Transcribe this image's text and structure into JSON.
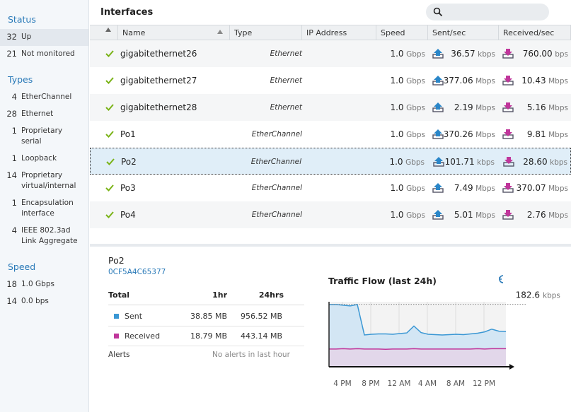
{
  "sidebar": {
    "sections": [
      {
        "title": "Status",
        "items": [
          {
            "count": "32",
            "label": "Up"
          },
          {
            "count": "21",
            "label": "Not monitored"
          }
        ]
      },
      {
        "title": "Types",
        "items": [
          {
            "count": "4",
            "label": "EtherChannel"
          },
          {
            "count": "28",
            "label": "Ethernet"
          },
          {
            "count": "1",
            "label": "Proprietary serial"
          },
          {
            "count": "1",
            "label": "Loopback"
          },
          {
            "count": "14",
            "label": "Proprietary virtual/internal"
          },
          {
            "count": "1",
            "label": "Encapsulation interface"
          },
          {
            "count": "4",
            "label": "IEEE 802.3ad Link Aggregate"
          }
        ]
      },
      {
        "title": "Speed",
        "items": [
          {
            "count": "18",
            "label": "1.0 Gbps"
          },
          {
            "count": "14",
            "label": "0.0 bps"
          }
        ]
      }
    ]
  },
  "header": {
    "title": "Interfaces"
  },
  "table": {
    "columns": [
      "Name",
      "Type",
      "IP Address",
      "Speed",
      "Sent/sec",
      "Received/sec"
    ],
    "selected": 4,
    "rows": [
      {
        "name": "gigabitethernet26",
        "type": "Ethernet",
        "speed": [
          "1.0",
          "Gbps"
        ],
        "sent": [
          "36.57",
          "kbps"
        ],
        "received": [
          "760.00",
          "bps"
        ]
      },
      {
        "name": "gigabitethernet27",
        "type": "Ethernet",
        "speed": [
          "1.0",
          "Gbps"
        ],
        "sent": [
          "377.06",
          "Mbps"
        ],
        "received": [
          "10.43",
          "Mbps"
        ]
      },
      {
        "name": "gigabitethernet28",
        "type": "Ethernet",
        "speed": [
          "1.0",
          "Gbps"
        ],
        "sent": [
          "2.19",
          "Mbps"
        ],
        "received": [
          "5.16",
          "Mbps"
        ]
      },
      {
        "name": "Po1",
        "type": "EtherChannel",
        "speed": [
          "1.0",
          "Gbps"
        ],
        "sent": [
          "370.26",
          "Mbps"
        ],
        "received": [
          "9.81",
          "Mbps"
        ]
      },
      {
        "name": "Po2",
        "type": "EtherChannel",
        "speed": [
          "1.0",
          "Gbps"
        ],
        "sent": [
          "101.71",
          "kbps"
        ],
        "received": [
          "28.60",
          "kbps"
        ]
      },
      {
        "name": "Po3",
        "type": "EtherChannel",
        "speed": [
          "1.0",
          "Gbps"
        ],
        "sent": [
          "7.49",
          "Mbps"
        ],
        "received": [
          "370.07",
          "Mbps"
        ]
      },
      {
        "name": "Po4",
        "type": "EtherChannel",
        "speed": [
          "1.0",
          "Gbps"
        ],
        "sent": [
          "5.01",
          "Mbps"
        ],
        "received": [
          "2.76",
          "Mbps"
        ]
      }
    ]
  },
  "detail": {
    "name": "Po2",
    "mac": "0CF5A4C65377",
    "totals": {
      "header": [
        "Total",
        "1hr",
        "24hrs"
      ],
      "rows": [
        {
          "label": "Sent",
          "hr": "38.85 MB",
          "day": "956.52 MB"
        },
        {
          "label": "Received",
          "hr": "18.79 MB",
          "day": "443.14 MB"
        }
      ],
      "alerts_label": "Alerts",
      "alerts_text": "No alerts in last hour"
    }
  },
  "traffic": {
    "type": "area",
    "title": "Traffic Flow (last 24h)",
    "peak": {
      "value": 182.6,
      "unit": "kbps"
    },
    "ylim": [
      0,
      190
    ],
    "x_labels": [
      "4 PM",
      "8 PM",
      "12 AM",
      "4 AM",
      "8 AM",
      "12 PM"
    ],
    "series": [
      {
        "color": "#3a97d4",
        "values": [
          182,
          182,
          180,
          178,
          182,
          93,
          95,
          96,
          96,
          95,
          97,
          99,
          119,
          100,
          95,
          94,
          93,
          94,
          95,
          94,
          96,
          98,
          102,
          110,
          104,
          103
        ]
      },
      {
        "color": "#c0369b",
        "values": [
          52,
          52,
          53,
          52,
          53,
          52,
          52,
          52,
          51,
          52,
          52,
          52,
          53,
          52,
          52,
          52,
          52,
          52,
          52,
          52,
          52,
          53,
          52,
          53,
          53,
          53
        ]
      }
    ]
  }
}
